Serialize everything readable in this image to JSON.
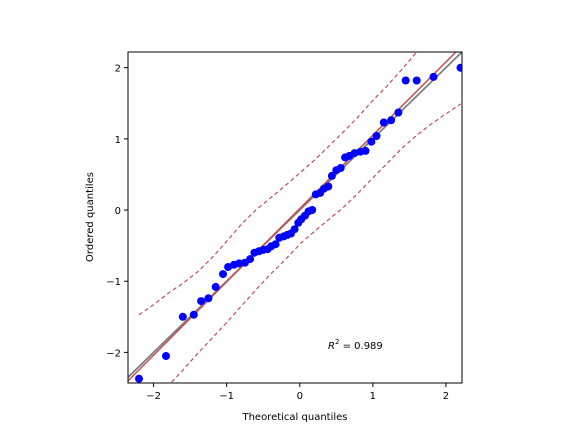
{
  "chart_data": {
    "type": "scatter",
    "title": "",
    "xlabel": "Theoretical quantiles",
    "ylabel": "Ordered quantiles",
    "xlim": [
      -2.35,
      2.22
    ],
    "ylim": [
      -2.43,
      2.22
    ],
    "xticks": [
      -2,
      -1,
      0,
      1,
      2
    ],
    "yticks": [
      -2,
      -1,
      0,
      1,
      2
    ],
    "tick_labels_x": [
      "−2",
      "−1",
      "0",
      "1",
      "2"
    ],
    "tick_labels_y": [
      "−2",
      "−1",
      "0",
      "1",
      "2"
    ],
    "grid": false,
    "points": [
      [
        -2.2,
        -2.37
      ],
      [
        -1.83,
        -2.05
      ],
      [
        -1.6,
        -1.5
      ],
      [
        -1.45,
        -1.47
      ],
      [
        -1.35,
        -1.28
      ],
      [
        -1.25,
        -1.24
      ],
      [
        -1.15,
        -1.08
      ],
      [
        -1.05,
        -0.9
      ],
      [
        -0.98,
        -0.8
      ],
      [
        -0.9,
        -0.77
      ],
      [
        -0.83,
        -0.75
      ],
      [
        -0.75,
        -0.74
      ],
      [
        -0.68,
        -0.69
      ],
      [
        -0.62,
        -0.6
      ],
      [
        -0.56,
        -0.58
      ],
      [
        -0.5,
        -0.56
      ],
      [
        -0.44,
        -0.55
      ],
      [
        -0.39,
        -0.51
      ],
      [
        -0.33,
        -0.48
      ],
      [
        -0.28,
        -0.39
      ],
      [
        -0.22,
        -0.37
      ],
      [
        -0.17,
        -0.35
      ],
      [
        -0.12,
        -0.33
      ],
      [
        -0.07,
        -0.27
      ],
      [
        -0.02,
        -0.18
      ],
      [
        0.02,
        -0.13
      ],
      [
        0.07,
        -0.08
      ],
      [
        0.12,
        -0.02
      ],
      [
        0.17,
        0.0
      ],
      [
        0.22,
        0.22
      ],
      [
        0.28,
        0.24
      ],
      [
        0.33,
        0.3
      ],
      [
        0.39,
        0.33
      ],
      [
        0.44,
        0.48
      ],
      [
        0.5,
        0.56
      ],
      [
        0.56,
        0.59
      ],
      [
        0.62,
        0.74
      ],
      [
        0.68,
        0.76
      ],
      [
        0.75,
        0.8
      ],
      [
        0.83,
        0.82
      ],
      [
        0.9,
        0.83
      ],
      [
        0.98,
        0.96
      ],
      [
        1.05,
        1.04
      ],
      [
        1.15,
        1.23
      ],
      [
        1.25,
        1.26
      ],
      [
        1.35,
        1.37
      ],
      [
        1.45,
        1.82
      ],
      [
        1.6,
        1.82
      ],
      [
        1.83,
        1.87
      ],
      [
        2.2,
        2.0
      ]
    ],
    "reference_line": {
      "slope": 1.0,
      "intercept": 0.0,
      "color": "#808080"
    },
    "fit_line": {
      "slope": 1.03,
      "intercept": 0.02,
      "color": "#c44e52"
    },
    "confidence_band": {
      "x": [
        -2.2,
        -2.0,
        -1.8,
        -1.6,
        -1.4,
        -1.2,
        -1.0,
        -0.8,
        -0.6,
        -0.4,
        -0.2,
        0.0,
        0.2,
        0.4,
        0.6,
        0.8,
        1.0,
        1.2,
        1.4,
        1.6,
        1.8,
        2.0,
        2.2
      ],
      "upper": [
        -1.47,
        -1.33,
        -1.17,
        -1.03,
        -0.87,
        -0.67,
        -0.44,
        -0.2,
        0.0,
        0.17,
        0.34,
        0.52,
        0.7,
        0.9,
        1.1,
        1.31,
        1.54,
        1.75,
        1.98,
        2.22,
        2.45,
        2.68,
        2.9
      ],
      "lower": [
        -2.93,
        -2.7,
        -2.47,
        -2.25,
        -2.02,
        -1.8,
        -1.58,
        -1.35,
        -1.12,
        -0.9,
        -0.7,
        -0.48,
        -0.3,
        -0.13,
        0.04,
        0.24,
        0.45,
        0.66,
        0.87,
        1.05,
        1.21,
        1.35,
        1.49
      ],
      "color": "#c44e52",
      "style": "dashed"
    },
    "point_color": "#0000ff",
    "annotation": {
      "r2_label": "R",
      "r2_sup": "2",
      "r2_value": " = 0.989",
      "placement": "bottom-right"
    }
  }
}
